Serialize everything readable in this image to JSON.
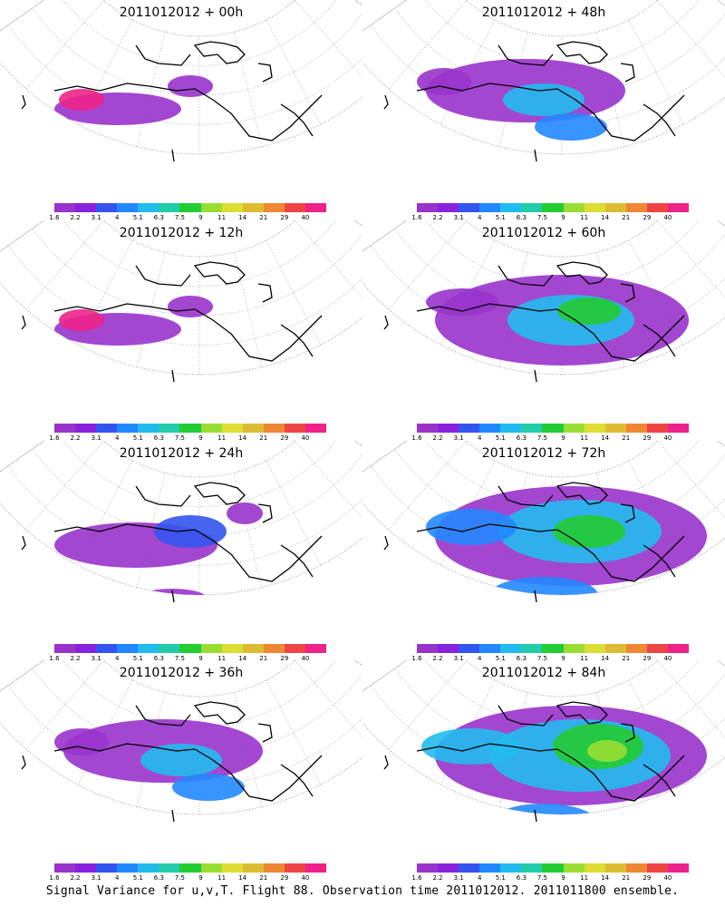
{
  "panels": [
    {
      "title": "2011012012 + 00h",
      "level": 0
    },
    {
      "title": "2011012012 + 48h",
      "level": 2
    },
    {
      "title": "2011012012 + 12h",
      "level": 0
    },
    {
      "title": "2011012012 + 60h",
      "level": 3
    },
    {
      "title": "2011012012 + 24h",
      "level": 1
    },
    {
      "title": "2011012012 + 72h",
      "level": 4
    },
    {
      "title": "2011012012 + 36h",
      "level": 2
    },
    {
      "title": "2011012012 + 84h",
      "level": 5
    }
  ],
  "colorbar": {
    "labels": [
      "1.6",
      "2.2",
      "3.1",
      "4",
      "5.1",
      "6.3",
      "7.5",
      "9",
      "11",
      "14",
      "21",
      "29",
      "40"
    ],
    "colors": [
      "#9933cc",
      "#8822dd",
      "#3355ee",
      "#2288ff",
      "#22bbee",
      "#22ccaa",
      "#22cc33",
      "#99dd33",
      "#dddd33",
      "#ddbb33",
      "#ee8833",
      "#ee4444",
      "#ee2288"
    ]
  },
  "caption": "Signal Variance for u,v,T. Flight 88. Observation time 2011012012. 2011011800 ensemble."
}
